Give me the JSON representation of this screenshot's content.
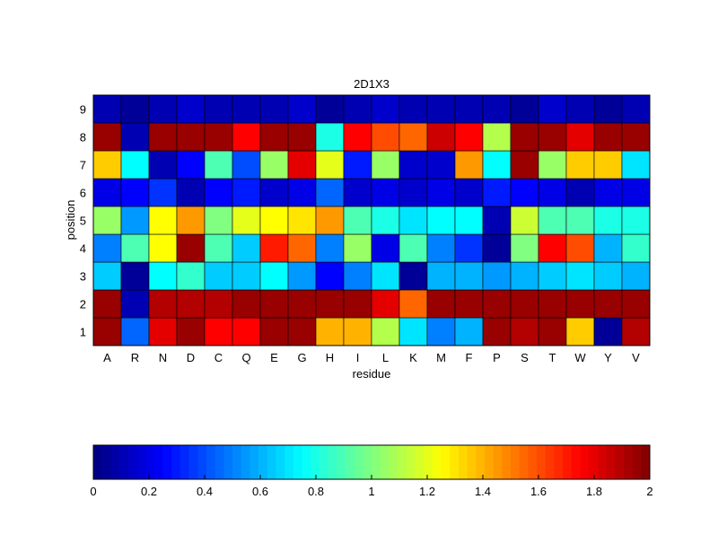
{
  "chart_data": {
    "type": "heatmap",
    "title": "2D1X3",
    "xlabel": "residue",
    "ylabel": "position",
    "x_categories": [
      "A",
      "R",
      "N",
      "D",
      "C",
      "Q",
      "E",
      "G",
      "H",
      "I",
      "L",
      "K",
      "M",
      "F",
      "P",
      "S",
      "T",
      "W",
      "Y",
      "V"
    ],
    "y_categories": [
      "1",
      "2",
      "3",
      "4",
      "5",
      "6",
      "7",
      "8",
      "9"
    ],
    "values": [
      [
        1.95,
        0.45,
        1.8,
        1.95,
        1.75,
        1.75,
        1.95,
        1.95,
        1.4,
        1.4,
        1.1,
        0.7,
        0.5,
        0.6,
        1.95,
        1.9,
        1.95,
        1.35,
        0.05,
        1.9
      ],
      [
        1.95,
        0.1,
        1.9,
        1.9,
        1.9,
        1.95,
        1.95,
        1.95,
        1.95,
        1.95,
        1.8,
        1.55,
        1.95,
        1.95,
        1.95,
        1.95,
        1.95,
        1.95,
        1.95,
        1.95
      ],
      [
        0.65,
        0.05,
        0.75,
        0.85,
        0.65,
        0.65,
        0.75,
        0.55,
        0.25,
        0.5,
        0.7,
        0.05,
        0.6,
        0.6,
        0.55,
        0.6,
        0.65,
        0.7,
        0.65,
        0.6
      ],
      [
        0.5,
        0.9,
        1.25,
        1.95,
        0.9,
        0.65,
        1.7,
        1.55,
        0.5,
        1.05,
        0.2,
        0.9,
        0.5,
        0.35,
        0.05,
        1.0,
        1.75,
        1.6,
        0.6,
        0.85
      ],
      [
        1.05,
        0.55,
        1.25,
        1.45,
        1.0,
        1.2,
        1.25,
        1.3,
        1.45,
        0.9,
        0.8,
        0.7,
        0.75,
        0.75,
        0.1,
        1.15,
        0.9,
        0.9,
        0.8,
        0.8
      ],
      [
        0.2,
        0.25,
        0.35,
        0.1,
        0.25,
        0.3,
        0.15,
        0.2,
        0.45,
        0.15,
        0.2,
        0.15,
        0.2,
        0.15,
        0.3,
        0.25,
        0.2,
        0.1,
        0.2,
        0.2
      ],
      [
        1.35,
        0.75,
        0.1,
        0.25,
        0.9,
        0.4,
        1.05,
        1.8,
        1.2,
        0.3,
        1.05,
        0.15,
        0.15,
        1.45,
        0.75,
        1.95,
        1.05,
        1.35,
        1.35,
        0.7
      ],
      [
        1.95,
        0.1,
        1.95,
        1.95,
        1.95,
        1.75,
        1.95,
        1.95,
        0.8,
        1.75,
        1.6,
        1.55,
        1.85,
        1.75,
        1.1,
        1.95,
        1.95,
        1.8,
        1.95,
        1.95
      ],
      [
        0.1,
        0.05,
        0.1,
        0.15,
        0.1,
        0.1,
        0.1,
        0.15,
        0.05,
        0.1,
        0.15,
        0.1,
        0.1,
        0.1,
        0.1,
        0.05,
        0.15,
        0.1,
        0.05,
        0.1
      ]
    ],
    "value_range": [
      0,
      2
    ],
    "colormap": "jet",
    "colorbar": {
      "orientation": "horizontal",
      "placement": "bottom",
      "ticks": [
        "0",
        "0.2",
        "0.4",
        "0.6",
        "0.8",
        "1",
        "1.2",
        "1.4",
        "1.6",
        "1.8",
        "2"
      ],
      "tick_values": [
        0,
        0.2,
        0.4,
        0.6,
        0.8,
        1,
        1.2,
        1.4,
        1.6,
        1.8,
        2
      ]
    },
    "grid": true,
    "cell_border_color": "#000000"
  }
}
